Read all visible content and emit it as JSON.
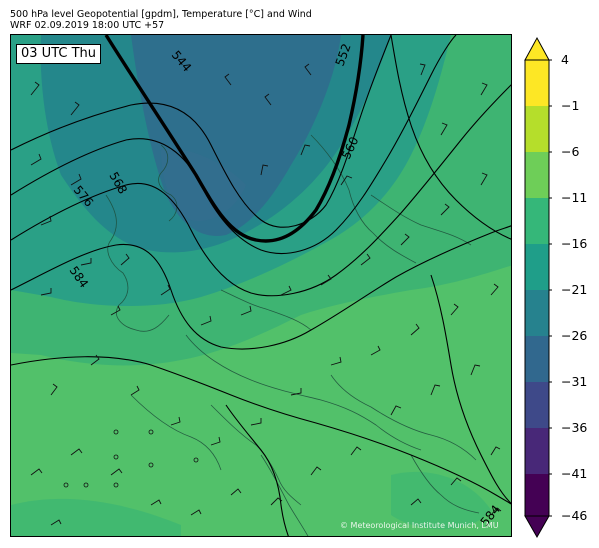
{
  "title": {
    "line1": "500 hPa level Geopotential [gpdm], Temperature [°C] and Wind",
    "line2": "WRF 02.09.2019 18:00 UTC +57"
  },
  "valid_time_label": "03 UTC Thu",
  "copyright": "© Meteorological Institute Munich, LMU",
  "contour_labels": [
    "544",
    "552",
    "560",
    "568",
    "576",
    "584",
    "584"
  ],
  "colorbar": {
    "tick_labels": [
      "4",
      "−1",
      "−6",
      "−11",
      "−16",
      "−21",
      "−26",
      "−31",
      "−36",
      "−41",
      "−46"
    ],
    "colors": [
      "#fde725",
      "#b5de2b",
      "#6ece58",
      "#35b779",
      "#1f9e89",
      "#26828e",
      "#31688e",
      "#3e4989",
      "#482878",
      "#440154"
    ]
  },
  "palette": {
    "warm": "#5cc463",
    "mid_green": "#3bb173",
    "teal": "#2a9c86",
    "deep_teal": "#23868c",
    "blue": "#2f6b8d"
  }
}
